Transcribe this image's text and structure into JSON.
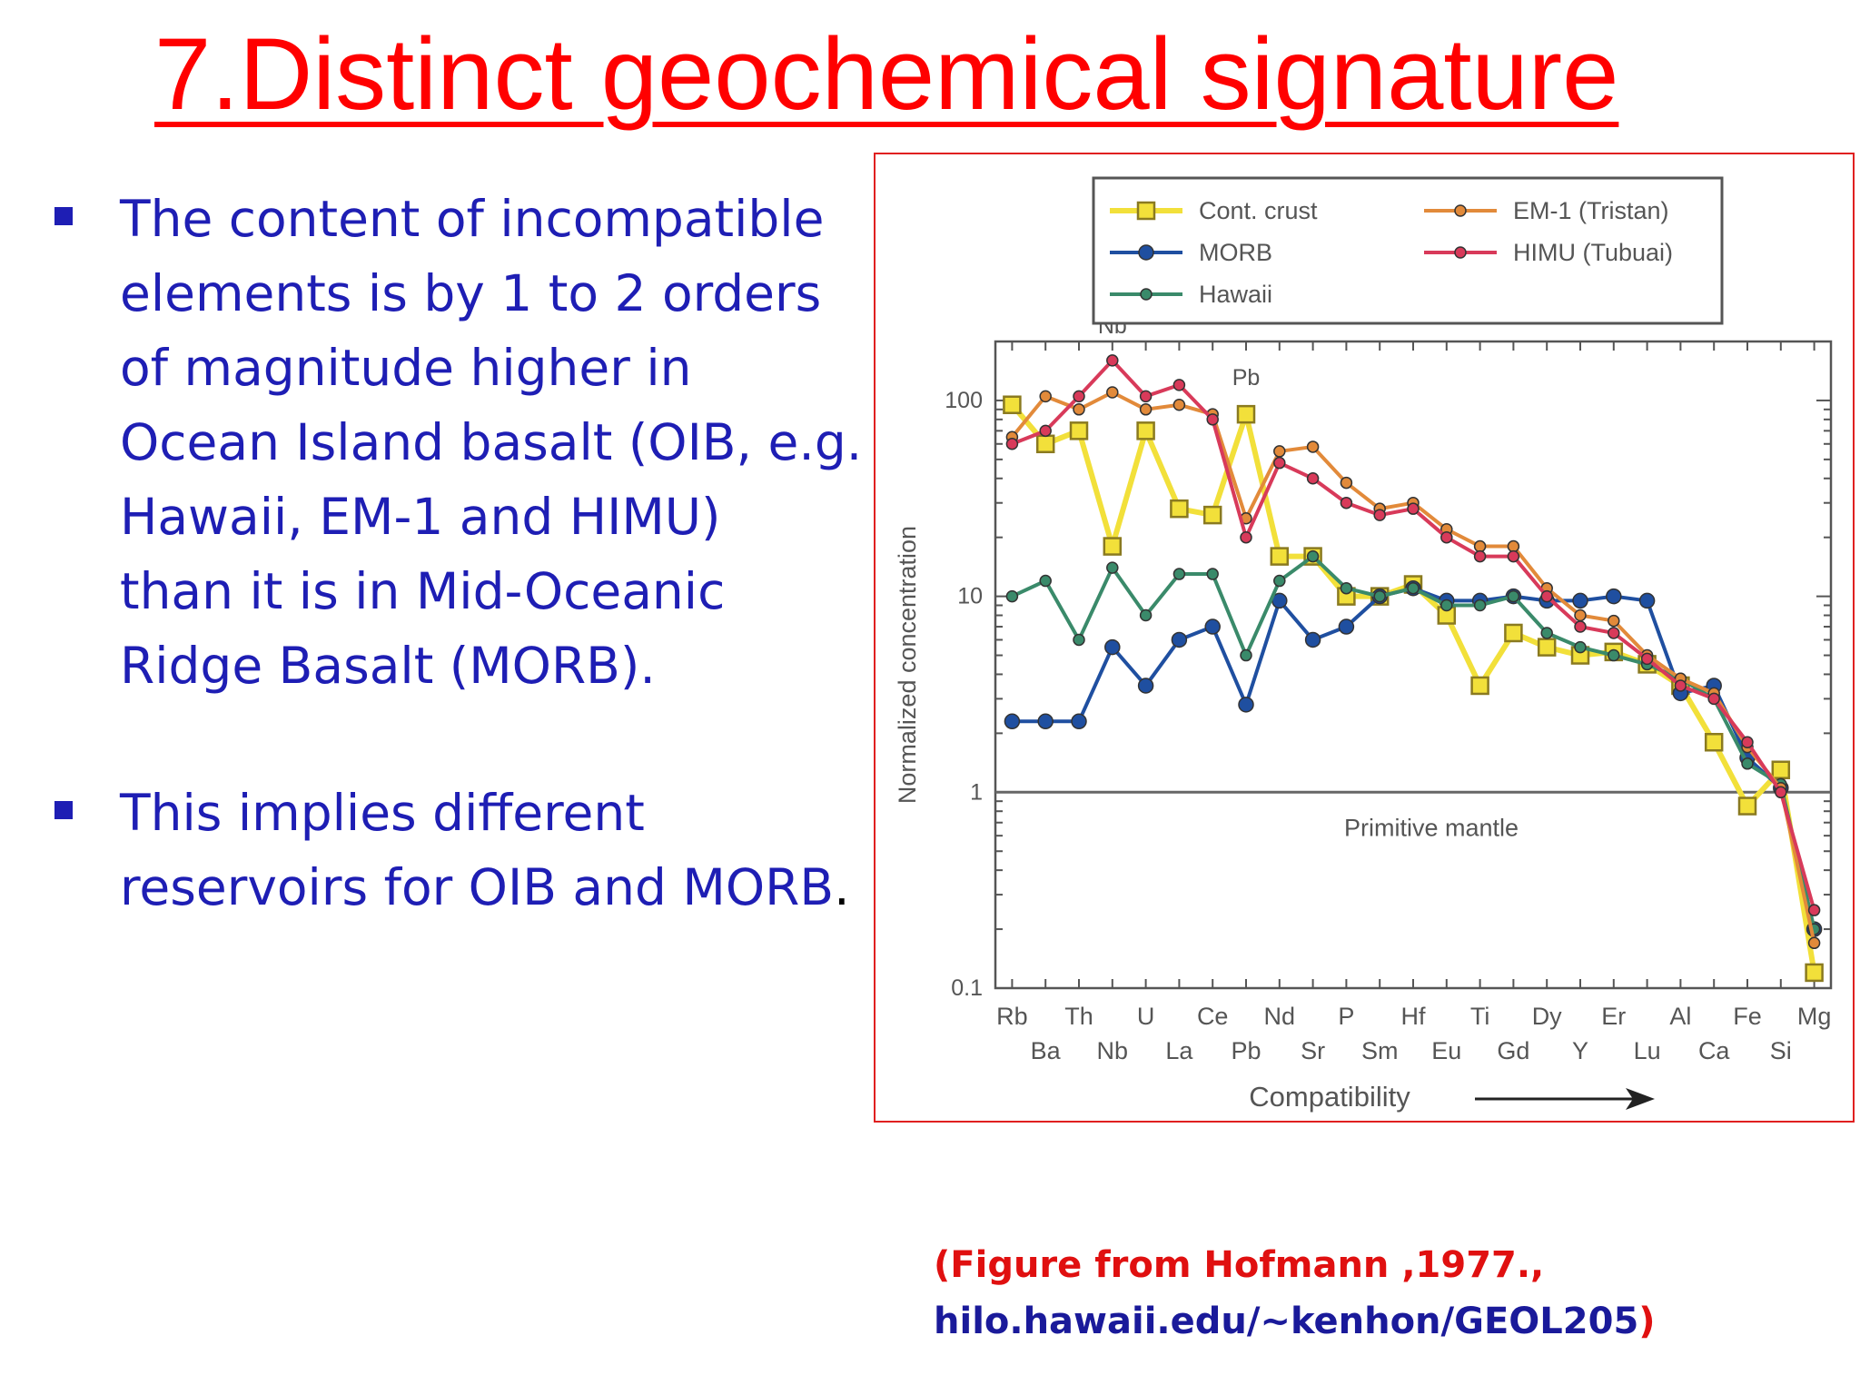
{
  "slide": {
    "title": "7.Distinct geochemical signature",
    "bullets": [
      {
        "text": "The content of incompatible\nelements is by 1 to 2 orders\nof magnitude higher in\nOcean Island basalt (OIB, e.g.\nHawaii, EM-1 and HIMU)\nthan it is in Mid-Oceanic\nRidge Basalt (MORB).",
        "tail": ""
      },
      {
        "text": " This implies different\nreservoirs for OIB and MORB",
        "tail": "."
      }
    ],
    "caption": {
      "line1": "(Figure from Hofmann ,1977.,",
      "line2": "hilo.hawaii.edu/~kenhon/GEOL205",
      "line2_close": ")"
    },
    "colors": {
      "title": "#ff0000",
      "text": "#1e1eb4",
      "caption_red": "#e01010",
      "caption_blue": "#1a1a9a",
      "figure_border": "#e02020"
    }
  },
  "chart_data": {
    "type": "line",
    "title": "",
    "xlabel": "Compatibility",
    "ylabel": "Normalized concentration",
    "yscale": "log",
    "ylim": [
      0.1,
      200
    ],
    "y_ticks": [
      "100",
      "10",
      "1",
      "0.1"
    ],
    "categories": [
      "Rb",
      "Ba",
      "Th",
      "Nb",
      "U",
      "La",
      "Ce",
      "Pb",
      "Nd",
      "Sr",
      "P",
      "Sm",
      "Hf",
      "Eu",
      "Ti",
      "Gd",
      "Dy",
      "Y",
      "Er",
      "Lu",
      "Al",
      "Ca",
      "Fe",
      "Si",
      "Mg"
    ],
    "reference_line": {
      "value": 1,
      "label": "Primitive  mantle"
    },
    "point_labels": [
      {
        "text": "Nb",
        "category": "Nb",
        "value": 220
      },
      {
        "text": "Pb",
        "category": "Pb",
        "value": 120
      }
    ],
    "legend": {
      "position": "top"
    },
    "series": [
      {
        "name": "Cont. crust",
        "color": "#f2e03a",
        "marker": "square",
        "values": [
          95,
          60,
          70,
          18,
          70,
          28,
          26,
          85,
          16,
          16,
          10,
          10,
          11.5,
          8,
          3.5,
          6.5,
          5.5,
          5,
          5.2,
          4.5,
          3.5,
          1.8,
          0.85,
          1.3,
          0.12
        ]
      },
      {
        "name": "MORB",
        "color": "#1f4fa0",
        "marker": "circle",
        "values": [
          2.3,
          2.3,
          2.3,
          5.5,
          3.5,
          6,
          7,
          2.8,
          9.5,
          6,
          7,
          10,
          11,
          9.5,
          9.5,
          10,
          9.5,
          9.5,
          10,
          9.5,
          3.2,
          3.5,
          1.5,
          1.05,
          0.2
        ]
      },
      {
        "name": "Hawaii",
        "color": "#3a8a6a",
        "marker": "circle",
        "values": [
          10,
          12,
          6,
          14,
          8,
          13,
          13,
          5,
          12,
          16,
          11,
          10,
          11,
          9,
          9,
          10,
          6.5,
          5.5,
          5,
          4.5,
          3.8,
          3,
          1.4,
          1.1,
          0.2
        ]
      },
      {
        "name": "EM-1 (Tristan)",
        "color": "#e28a3a",
        "marker": "circle",
        "values": [
          65,
          105,
          90,
          110,
          90,
          95,
          85,
          25,
          55,
          58,
          38,
          28,
          30,
          22,
          18,
          18,
          11,
          8,
          7.5,
          5,
          3.8,
          3.2,
          1.7,
          1.05,
          0.17
        ]
      },
      {
        "name": "HIMU (Tubuai)",
        "color": "#d83a5a",
        "marker": "circle",
        "values": [
          60,
          70,
          105,
          160,
          105,
          120,
          80,
          20,
          48,
          40,
          30,
          26,
          28,
          20,
          16,
          16,
          10,
          7,
          6.5,
          4.8,
          3.5,
          3,
          1.8,
          1.0,
          0.25
        ]
      }
    ]
  }
}
